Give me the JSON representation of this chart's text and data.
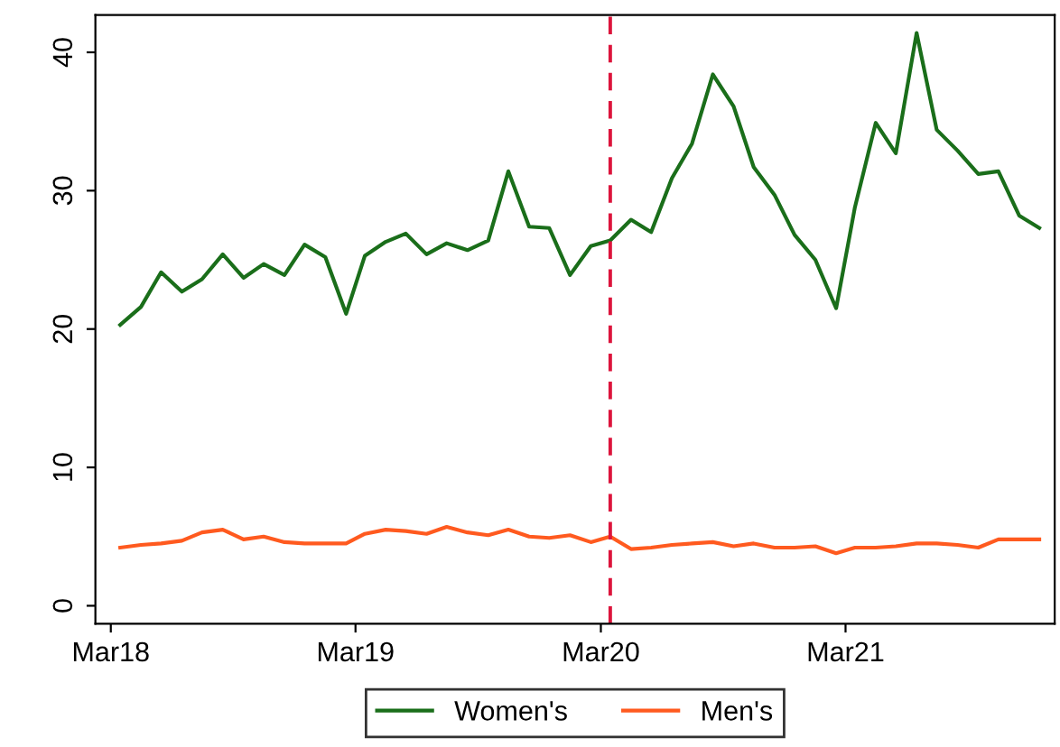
{
  "chart_data": {
    "type": "line",
    "x": [
      "2018-03-15",
      "2018-04-15",
      "2018-05-15",
      "2018-06-15",
      "2018-07-15",
      "2018-08-15",
      "2018-09-15",
      "2018-10-15",
      "2018-11-15",
      "2018-12-15",
      "2019-01-15",
      "2019-02-15",
      "2019-03-15",
      "2019-04-15",
      "2019-05-15",
      "2019-06-15",
      "2019-07-15",
      "2019-08-15",
      "2019-09-15",
      "2019-10-15",
      "2019-11-15",
      "2019-12-15",
      "2020-01-15",
      "2020-02-15",
      "2020-03-15",
      "2020-04-15",
      "2020-05-15",
      "2020-06-15",
      "2020-07-15",
      "2020-08-15",
      "2020-09-15",
      "2020-10-15",
      "2020-11-15",
      "2020-12-15",
      "2021-01-15",
      "2021-02-15",
      "2021-03-15",
      "2021-04-15",
      "2021-05-15",
      "2021-06-15",
      "2021-07-15",
      "2021-08-15",
      "2021-09-15",
      "2021-10-15",
      "2021-11-15",
      "2021-12-15"
    ],
    "series": [
      {
        "name": "Women's",
        "color": "#1a6e1a",
        "values": [
          20.3,
          21.6,
          24.1,
          22.7,
          23.6,
          25.4,
          23.7,
          24.7,
          23.9,
          26.1,
          25.2,
          21.1,
          25.3,
          26.3,
          26.9,
          25.4,
          26.2,
          25.7,
          26.4,
          31.4,
          27.4,
          27.3,
          23.9,
          26.0,
          26.4,
          27.9,
          27.0,
          30.9,
          33.4,
          38.4,
          36.1,
          31.7,
          29.7,
          26.8,
          25.0,
          21.5,
          28.8,
          34.9,
          32.7,
          41.4,
          34.4,
          32.9,
          31.2,
          31.4,
          28.2,
          27.3
        ]
      },
      {
        "name": "Men's",
        "color": "#ff5a1f",
        "values": [
          4.2,
          4.4,
          4.5,
          4.7,
          5.3,
          5.5,
          4.8,
          5.0,
          4.6,
          4.5,
          4.5,
          4.5,
          5.2,
          5.5,
          5.4,
          5.2,
          5.7,
          5.3,
          5.1,
          5.5,
          5.0,
          4.9,
          5.1,
          4.6,
          5.0,
          4.1,
          4.2,
          4.4,
          4.5,
          4.6,
          4.3,
          4.5,
          4.2,
          4.2,
          4.3,
          3.8,
          4.2,
          4.2,
          4.3,
          4.5,
          4.5,
          4.4,
          4.2,
          4.8,
          4.8,
          4.8
        ]
      }
    ],
    "xlim": [
      "2018-02-06",
      "2022-01-07"
    ],
    "xticks": [
      {
        "value": "2018-03-01",
        "label": "Mar18"
      },
      {
        "value": "2019-03-01",
        "label": "Mar19"
      },
      {
        "value": "2020-03-01",
        "label": "Mar20"
      },
      {
        "value": "2021-03-01",
        "label": "Mar21"
      }
    ],
    "ylim": [
      -1.3,
      42.7
    ],
    "yticks": [
      0,
      10,
      20,
      30,
      40
    ],
    "ref_lines": [
      {
        "axis": "x",
        "value": "2020-03-15",
        "color": "#dc143c",
        "line_style": "dashed"
      }
    ],
    "legend": "bottom",
    "grid": false,
    "line_style": "solid"
  }
}
